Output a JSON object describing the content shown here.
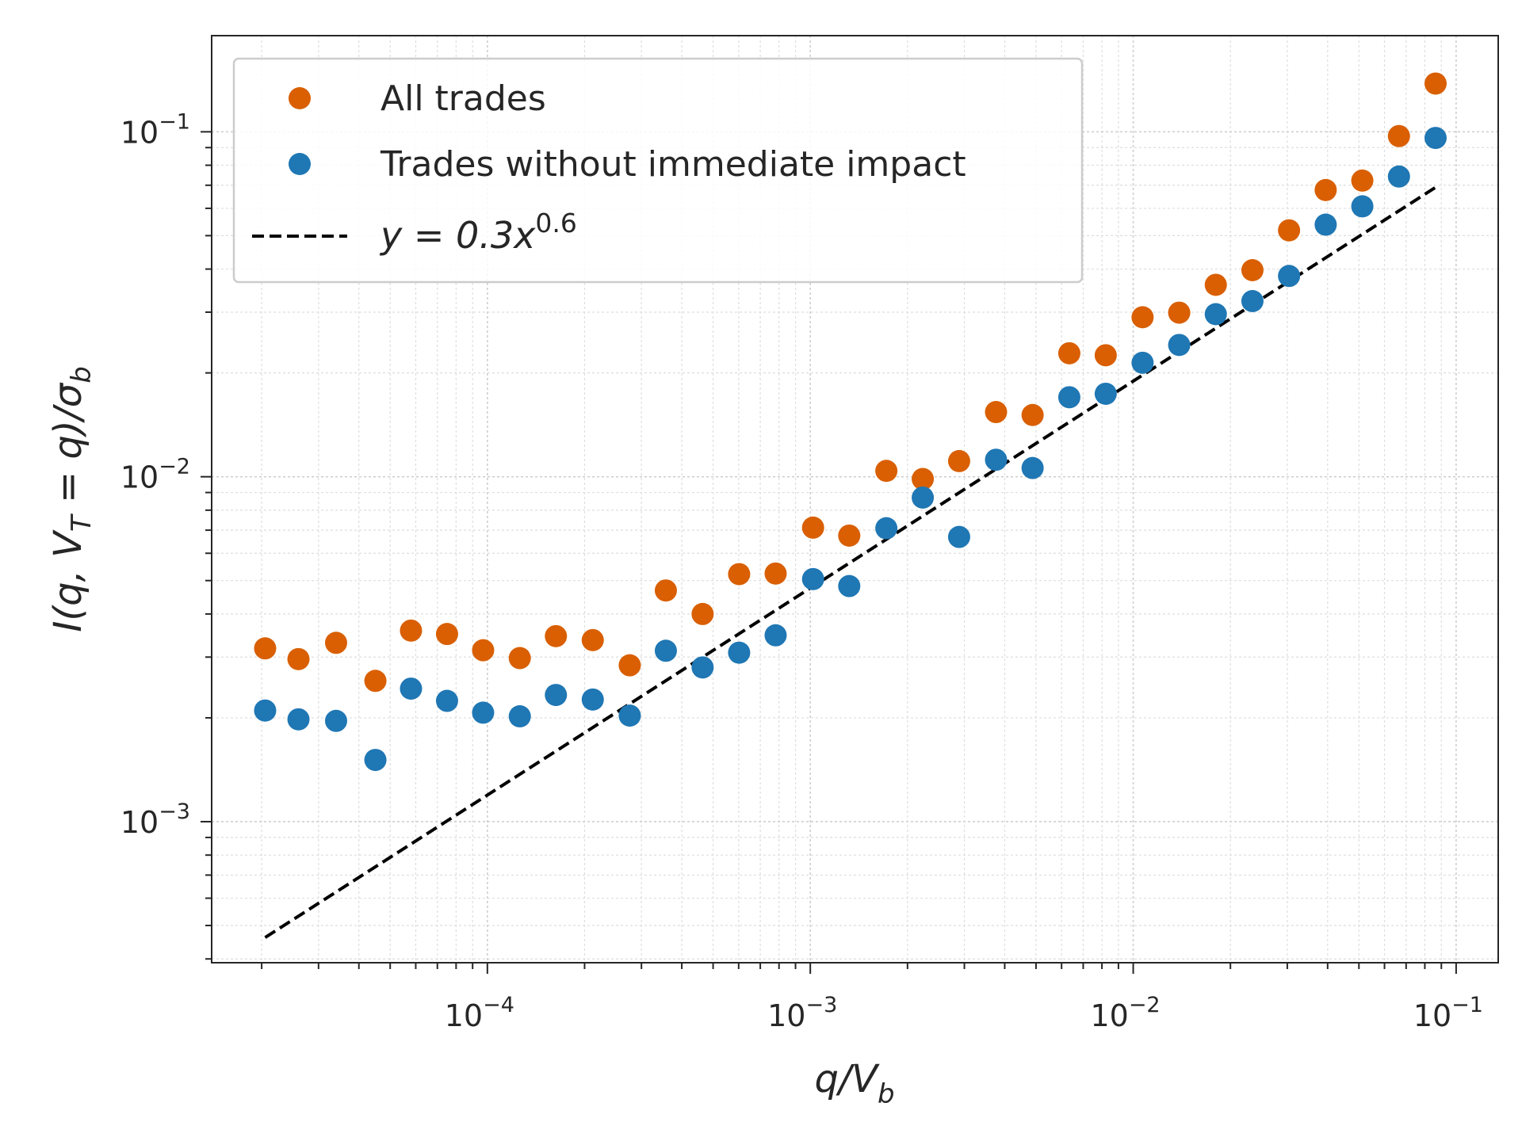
{
  "chart_data": {
    "type": "scatter",
    "xscale": "log",
    "yscale": "log",
    "xlim": [
      1.4e-05,
      0.135
    ],
    "ylim": [
      0.00039,
      0.19
    ],
    "xlabel": {
      "base": "q/V",
      "sub": "b"
    },
    "ylabel": {
      "text": "I(q, V",
      "sub1": "T",
      "mid": " = q)/σ",
      "sub2": "b"
    },
    "x_major_ticks": [
      {
        "value": 0.0001,
        "base": "10",
        "exp": "−4"
      },
      {
        "value": 0.001,
        "base": "10",
        "exp": "−3"
      },
      {
        "value": 0.01,
        "base": "10",
        "exp": "−2"
      },
      {
        "value": 0.1,
        "base": "10",
        "exp": "−1"
      }
    ],
    "y_major_ticks": [
      {
        "value": 0.001,
        "base": "10",
        "exp": "−3"
      },
      {
        "value": 0.01,
        "base": "10",
        "exp": "−2"
      },
      {
        "value": 0.1,
        "base": "10",
        "exp": "−1"
      }
    ],
    "grid": true,
    "legend_position": "top-left",
    "series": [
      {
        "name": "All trades",
        "kind": "scatter",
        "color": "#d95f02",
        "points": [
          [
            2.05e-05,
            0.00318
          ],
          [
            2.6e-05,
            0.00296
          ],
          [
            3.4e-05,
            0.0033
          ],
          [
            4.5e-05,
            0.00256
          ],
          [
            5.8e-05,
            0.00358
          ],
          [
            7.5e-05,
            0.0035
          ],
          [
            9.7e-05,
            0.00314
          ],
          [
            0.000126,
            0.00298
          ],
          [
            0.000163,
            0.00345
          ],
          [
            0.000212,
            0.00336
          ],
          [
            0.000276,
            0.00284
          ],
          [
            0.000357,
            0.00468
          ],
          [
            0.000464,
            0.004
          ],
          [
            0.000602,
            0.00522
          ],
          [
            0.000781,
            0.00524
          ],
          [
            0.00102,
            0.00712
          ],
          [
            0.00132,
            0.00675
          ],
          [
            0.00172,
            0.0104
          ],
          [
            0.00223,
            0.00985
          ],
          [
            0.00289,
            0.0111
          ],
          [
            0.00376,
            0.0154
          ],
          [
            0.00488,
            0.0151
          ],
          [
            0.00634,
            0.0228
          ],
          [
            0.00822,
            0.0225
          ],
          [
            0.01069,
            0.029
          ],
          [
            0.01388,
            0.0299
          ],
          [
            0.01802,
            0.036
          ],
          [
            0.0234,
            0.0397
          ],
          [
            0.03038,
            0.0518
          ],
          [
            0.03945,
            0.0678
          ],
          [
            0.05122,
            0.0722
          ],
          [
            0.06652,
            0.0972
          ],
          [
            0.08637,
            0.138
          ]
        ]
      },
      {
        "name": "Trades without immediate impact",
        "kind": "scatter",
        "color": "#1f77b4",
        "points": [
          [
            2.05e-05,
            0.0021
          ],
          [
            2.6e-05,
            0.00198
          ],
          [
            3.4e-05,
            0.00196
          ],
          [
            4.5e-05,
            0.00151
          ],
          [
            5.8e-05,
            0.00243
          ],
          [
            7.5e-05,
            0.00224
          ],
          [
            9.7e-05,
            0.00207
          ],
          [
            0.000126,
            0.00202
          ],
          [
            0.000163,
            0.00233
          ],
          [
            0.000212,
            0.00226
          ],
          [
            0.000276,
            0.00203
          ],
          [
            0.000357,
            0.00313
          ],
          [
            0.000464,
            0.0028
          ],
          [
            0.000602,
            0.00309
          ],
          [
            0.000781,
            0.00347
          ],
          [
            0.00102,
            0.00505
          ],
          [
            0.00132,
            0.00482
          ],
          [
            0.00172,
            0.00709
          ],
          [
            0.00223,
            0.0087
          ],
          [
            0.00289,
            0.00669
          ],
          [
            0.00376,
            0.0112
          ],
          [
            0.00488,
            0.0106
          ],
          [
            0.00634,
            0.017
          ],
          [
            0.00822,
            0.0174
          ],
          [
            0.01069,
            0.0214
          ],
          [
            0.01388,
            0.0241
          ],
          [
            0.01802,
            0.0296
          ],
          [
            0.0234,
            0.0323
          ],
          [
            0.03038,
            0.0382
          ],
          [
            0.03945,
            0.0538
          ],
          [
            0.05122,
            0.0608
          ],
          [
            0.06652,
            0.0742
          ],
          [
            0.08637,
            0.096
          ]
        ]
      },
      {
        "name": "y = 0.3x^0.6",
        "kind": "line",
        "style": "dashed",
        "color": "#000000",
        "coef": 0.3,
        "exponent": 0.6,
        "x_range": [
          2.05e-05,
          0.0865
        ]
      }
    ],
    "legend_labels": {
      "all_trades": "All trades",
      "without_impact": "Trades without immediate impact",
      "fit_prefix": "y = 0.3x",
      "fit_exp": "0.6"
    }
  }
}
